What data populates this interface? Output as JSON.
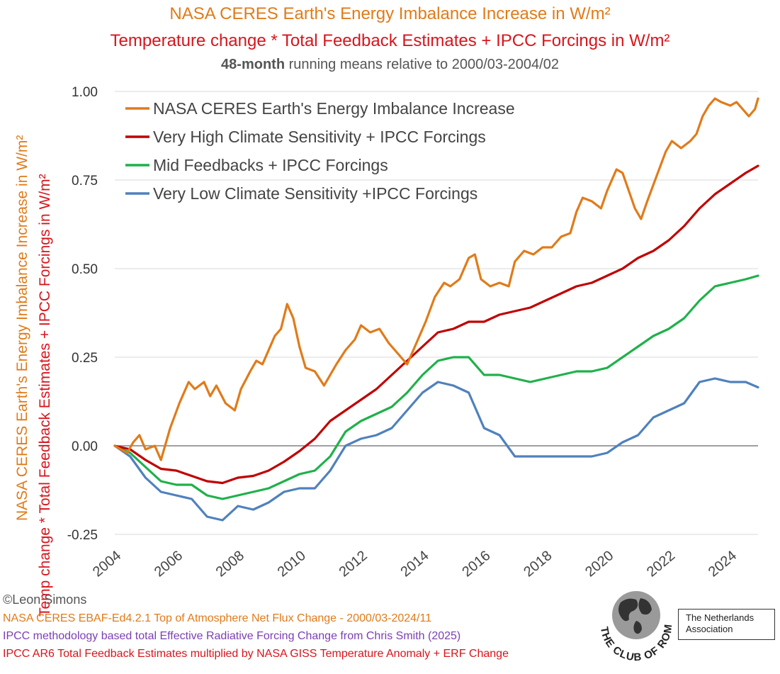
{
  "header": {
    "title1": "NASA CERES Earth's Energy Imbalance Increase in W/m²",
    "title2": "Temperature change * Total Feedback Estimates + IPCC Forcings in W/m²",
    "subtitle_bold": "48-month",
    "subtitle_rest": " running means relative to 2000/03-2004/02"
  },
  "footer": {
    "copyright": "©Leon Simons",
    "source1": "NASA CERES EBAF-Ed4.2.1 Top of Atmosphere Net Flux Change - 2000/03-2024/11",
    "source2": "IPCC methodology based total Effective Radiative Forcing Change from Chris Smith (2025)",
    "source3": "IPCC AR6 Total Feedback Estimates multiplied by NASA GISS Temperature Anomaly + ERF Change"
  },
  "logo": {
    "ring_text": "THE CLUB OF ROME",
    "box_line1": "The Netherlands",
    "box_line2": "Association"
  },
  "colors": {
    "orange": "#e07b1a",
    "red": "#c00000",
    "green": "#1fb14a",
    "blue": "#4f81bd"
  },
  "chart_data": {
    "type": "line",
    "ylabel_1": "NASA CERES Earth's Energy Imbalance Increase in W/m²",
    "ylabel_2": "Temp change * Total Feedback Estimates + IPCC Forcings in W/m²",
    "xlim": [
      2004,
      2024.9
    ],
    "ylim": [
      -0.25,
      1.0
    ],
    "x_ticks": [
      "2004",
      "2006",
      "2008",
      "2010",
      "2012",
      "2014",
      "2016",
      "2018",
      "2020",
      "2022",
      "2024"
    ],
    "y_ticks": [
      "-0.25",
      "0.00",
      "0.25",
      "0.50",
      "0.75",
      "1.00"
    ],
    "grid": "horizontal",
    "legend_position": "top-left",
    "series": [
      {
        "name": "NASA CERES Earth's Energy Imbalance Increase",
        "color": "#e07b1a",
        "points": [
          [
            2004.0,
            0.0
          ],
          [
            2004.4,
            -0.02
          ],
          [
            2004.6,
            0.01
          ],
          [
            2004.8,
            0.03
          ],
          [
            2005.0,
            -0.01
          ],
          [
            2005.3,
            0.0
          ],
          [
            2005.5,
            -0.04
          ],
          [
            2005.8,
            0.05
          ],
          [
            2006.1,
            0.12
          ],
          [
            2006.4,
            0.18
          ],
          [
            2006.6,
            0.16
          ],
          [
            2006.9,
            0.18
          ],
          [
            2007.1,
            0.14
          ],
          [
            2007.3,
            0.17
          ],
          [
            2007.6,
            0.12
          ],
          [
            2007.9,
            0.1
          ],
          [
            2008.1,
            0.16
          ],
          [
            2008.4,
            0.21
          ],
          [
            2008.6,
            0.24
          ],
          [
            2008.8,
            0.23
          ],
          [
            2009.0,
            0.27
          ],
          [
            2009.2,
            0.31
          ],
          [
            2009.4,
            0.33
          ],
          [
            2009.6,
            0.4
          ],
          [
            2009.8,
            0.36
          ],
          [
            2010.0,
            0.28
          ],
          [
            2010.2,
            0.22
          ],
          [
            2010.5,
            0.21
          ],
          [
            2010.8,
            0.17
          ],
          [
            2011.0,
            0.2
          ],
          [
            2011.2,
            0.23
          ],
          [
            2011.5,
            0.27
          ],
          [
            2011.8,
            0.3
          ],
          [
            2012.0,
            0.34
          ],
          [
            2012.3,
            0.32
          ],
          [
            2012.6,
            0.33
          ],
          [
            2012.9,
            0.29
          ],
          [
            2013.2,
            0.26
          ],
          [
            2013.5,
            0.23
          ],
          [
            2013.8,
            0.29
          ],
          [
            2014.1,
            0.35
          ],
          [
            2014.4,
            0.42
          ],
          [
            2014.7,
            0.46
          ],
          [
            2014.9,
            0.45
          ],
          [
            2015.2,
            0.47
          ],
          [
            2015.5,
            0.53
          ],
          [
            2015.7,
            0.54
          ],
          [
            2015.9,
            0.47
          ],
          [
            2016.2,
            0.45
          ],
          [
            2016.5,
            0.46
          ],
          [
            2016.8,
            0.45
          ],
          [
            2017.0,
            0.52
          ],
          [
            2017.3,
            0.55
          ],
          [
            2017.6,
            0.54
          ],
          [
            2017.9,
            0.56
          ],
          [
            2018.2,
            0.56
          ],
          [
            2018.5,
            0.59
          ],
          [
            2018.8,
            0.6
          ],
          [
            2019.0,
            0.66
          ],
          [
            2019.2,
            0.7
          ],
          [
            2019.5,
            0.69
          ],
          [
            2019.8,
            0.67
          ],
          [
            2020.0,
            0.72
          ],
          [
            2020.3,
            0.78
          ],
          [
            2020.5,
            0.77
          ],
          [
            2020.7,
            0.72
          ],
          [
            2020.9,
            0.67
          ],
          [
            2021.1,
            0.64
          ],
          [
            2021.3,
            0.69
          ],
          [
            2021.6,
            0.76
          ],
          [
            2021.9,
            0.83
          ],
          [
            2022.1,
            0.86
          ],
          [
            2022.4,
            0.84
          ],
          [
            2022.7,
            0.86
          ],
          [
            2022.9,
            0.88
          ],
          [
            2023.1,
            0.93
          ],
          [
            2023.3,
            0.96
          ],
          [
            2023.5,
            0.98
          ],
          [
            2023.7,
            0.97
          ],
          [
            2024.0,
            0.96
          ],
          [
            2024.2,
            0.97
          ],
          [
            2024.4,
            0.95
          ],
          [
            2024.6,
            0.93
          ],
          [
            2024.8,
            0.95
          ],
          [
            2024.9,
            0.98
          ]
        ]
      },
      {
        "name": "Very High Climate Sensitivity + IPCC Forcings",
        "color": "#c00000",
        "points": [
          [
            2004.0,
            0.0
          ],
          [
            2004.5,
            -0.01
          ],
          [
            2005.0,
            -0.04
          ],
          [
            2005.5,
            -0.065
          ],
          [
            2006.0,
            -0.07
          ],
          [
            2006.5,
            -0.085
          ],
          [
            2007.0,
            -0.1
          ],
          [
            2007.5,
            -0.105
          ],
          [
            2008.0,
            -0.09
          ],
          [
            2008.5,
            -0.085
          ],
          [
            2009.0,
            -0.07
          ],
          [
            2009.5,
            -0.045
          ],
          [
            2010.0,
            -0.015
          ],
          [
            2010.5,
            0.02
          ],
          [
            2011.0,
            0.07
          ],
          [
            2011.5,
            0.1
          ],
          [
            2012.0,
            0.13
          ],
          [
            2012.5,
            0.16
          ],
          [
            2013.0,
            0.2
          ],
          [
            2013.5,
            0.24
          ],
          [
            2014.0,
            0.28
          ],
          [
            2014.5,
            0.32
          ],
          [
            2015.0,
            0.33
          ],
          [
            2015.5,
            0.35
          ],
          [
            2016.0,
            0.35
          ],
          [
            2016.5,
            0.37
          ],
          [
            2017.0,
            0.38
          ],
          [
            2017.5,
            0.39
          ],
          [
            2018.0,
            0.41
          ],
          [
            2018.5,
            0.43
          ],
          [
            2019.0,
            0.45
          ],
          [
            2019.5,
            0.46
          ],
          [
            2020.0,
            0.48
          ],
          [
            2020.5,
            0.5
          ],
          [
            2021.0,
            0.53
          ],
          [
            2021.5,
            0.55
          ],
          [
            2022.0,
            0.58
          ],
          [
            2022.5,
            0.62
          ],
          [
            2023.0,
            0.67
          ],
          [
            2023.5,
            0.71
          ],
          [
            2024.0,
            0.74
          ],
          [
            2024.5,
            0.77
          ],
          [
            2024.9,
            0.79
          ]
        ]
      },
      {
        "name": "Mid Feedbacks + IPCC Forcings",
        "color": "#1fb14a",
        "points": [
          [
            2004.0,
            0.0
          ],
          [
            2004.5,
            -0.02
          ],
          [
            2005.0,
            -0.06
          ],
          [
            2005.5,
            -0.1
          ],
          [
            2006.0,
            -0.11
          ],
          [
            2006.5,
            -0.11
          ],
          [
            2007.0,
            -0.14
          ],
          [
            2007.5,
            -0.15
          ],
          [
            2008.0,
            -0.14
          ],
          [
            2008.5,
            -0.13
          ],
          [
            2009.0,
            -0.12
          ],
          [
            2009.5,
            -0.1
          ],
          [
            2010.0,
            -0.08
          ],
          [
            2010.5,
            -0.07
          ],
          [
            2011.0,
            -0.03
          ],
          [
            2011.5,
            0.04
          ],
          [
            2012.0,
            0.07
          ],
          [
            2012.5,
            0.09
          ],
          [
            2013.0,
            0.11
          ],
          [
            2013.5,
            0.15
          ],
          [
            2014.0,
            0.2
          ],
          [
            2014.5,
            0.24
          ],
          [
            2015.0,
            0.25
          ],
          [
            2015.5,
            0.25
          ],
          [
            2016.0,
            0.2
          ],
          [
            2016.5,
            0.2
          ],
          [
            2017.0,
            0.19
          ],
          [
            2017.5,
            0.18
          ],
          [
            2018.0,
            0.19
          ],
          [
            2018.5,
            0.2
          ],
          [
            2019.0,
            0.21
          ],
          [
            2019.5,
            0.21
          ],
          [
            2020.0,
            0.22
          ],
          [
            2020.5,
            0.25
          ],
          [
            2021.0,
            0.28
          ],
          [
            2021.5,
            0.31
          ],
          [
            2022.0,
            0.33
          ],
          [
            2022.5,
            0.36
          ],
          [
            2023.0,
            0.41
          ],
          [
            2023.5,
            0.45
          ],
          [
            2024.0,
            0.46
          ],
          [
            2024.5,
            0.47
          ],
          [
            2024.9,
            0.48
          ]
        ]
      },
      {
        "name": "Very Low Climate Sensitivity +IPCC Forcings",
        "color": "#4f81bd",
        "points": [
          [
            2004.0,
            0.0
          ],
          [
            2004.5,
            -0.03
          ],
          [
            2005.0,
            -0.09
          ],
          [
            2005.5,
            -0.13
          ],
          [
            2006.0,
            -0.14
          ],
          [
            2006.5,
            -0.15
          ],
          [
            2007.0,
            -0.2
          ],
          [
            2007.5,
            -0.21
          ],
          [
            2008.0,
            -0.17
          ],
          [
            2008.5,
            -0.18
          ],
          [
            2009.0,
            -0.16
          ],
          [
            2009.5,
            -0.13
          ],
          [
            2010.0,
            -0.12
          ],
          [
            2010.5,
            -0.12
          ],
          [
            2011.0,
            -0.07
          ],
          [
            2011.5,
            0.0
          ],
          [
            2012.0,
            0.02
          ],
          [
            2012.5,
            0.03
          ],
          [
            2013.0,
            0.05
          ],
          [
            2013.5,
            0.1
          ],
          [
            2014.0,
            0.15
          ],
          [
            2014.5,
            0.18
          ],
          [
            2015.0,
            0.17
          ],
          [
            2015.5,
            0.15
          ],
          [
            2016.0,
            0.05
          ],
          [
            2016.5,
            0.03
          ],
          [
            2017.0,
            -0.03
          ],
          [
            2017.5,
            -0.03
          ],
          [
            2018.0,
            -0.03
          ],
          [
            2018.5,
            -0.03
          ],
          [
            2019.0,
            -0.03
          ],
          [
            2019.5,
            -0.03
          ],
          [
            2020.0,
            -0.02
          ],
          [
            2020.5,
            0.01
          ],
          [
            2021.0,
            0.03
          ],
          [
            2021.5,
            0.08
          ],
          [
            2022.0,
            0.1
          ],
          [
            2022.5,
            0.12
          ],
          [
            2023.0,
            0.18
          ],
          [
            2023.5,
            0.19
          ],
          [
            2024.0,
            0.18
          ],
          [
            2024.5,
            0.18
          ],
          [
            2024.9,
            0.165
          ]
        ]
      }
    ]
  }
}
